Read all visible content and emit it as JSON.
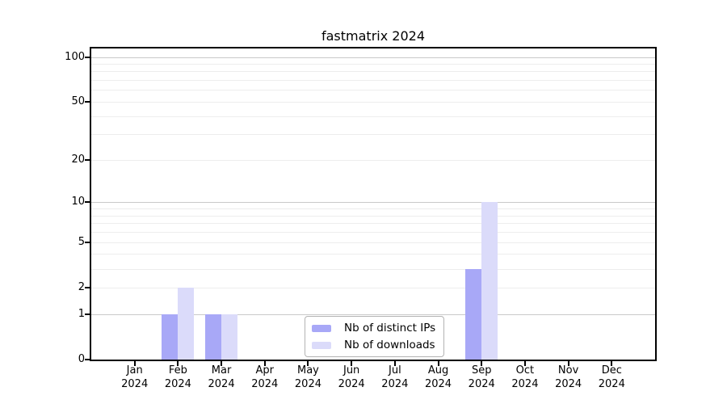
{
  "chart_data": {
    "type": "bar",
    "title": "fastmatrix 2024",
    "categories": [
      "Jan",
      "Feb",
      "Mar",
      "Apr",
      "May",
      "Jun",
      "Jul",
      "Aug",
      "Sep",
      "Oct",
      "Nov",
      "Dec"
    ],
    "category_year": "2024",
    "series": [
      {
        "name": "Nb of distinct IPs",
        "color": "#a8a8f7",
        "values": [
          0,
          1,
          1,
          0,
          0,
          0,
          0,
          0,
          3,
          0,
          0,
          0
        ]
      },
      {
        "name": "Nb of downloads",
        "color": "#dbdbfa",
        "values": [
          0,
          2,
          1,
          0,
          0,
          0,
          0,
          0,
          10,
          0,
          0,
          0
        ]
      }
    ],
    "yscale": "log1p",
    "ylim": [
      0,
      114
    ],
    "yticks": [
      0,
      1,
      2,
      5,
      10,
      20,
      50,
      100
    ],
    "grid": {
      "major": [
        1,
        10,
        100
      ],
      "minor": [
        2,
        3,
        4,
        5,
        6,
        7,
        8,
        9,
        20,
        30,
        40,
        50,
        60,
        70,
        80,
        90
      ],
      "major_color": "#c9c9c9",
      "minor_color": "#ededed"
    },
    "xlabel": "",
    "ylabel": "",
    "legend_position": "lower center",
    "axis_color": "#000000",
    "background_color": "#ffffff"
  }
}
